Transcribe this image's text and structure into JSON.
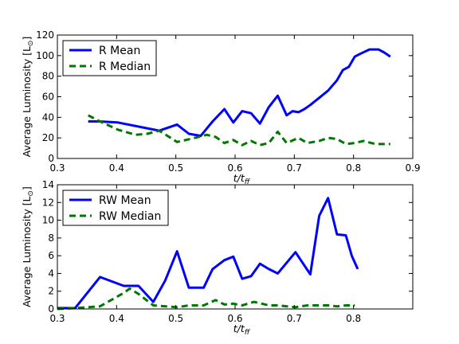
{
  "chart_data": [
    {
      "type": "line",
      "xlim": [
        0.3,
        0.9
      ],
      "ylim": [
        0,
        120
      ],
      "xticks": [
        "0.3",
        "0.4",
        "0.5",
        "0.6",
        "0.7",
        "0.8",
        "0.9"
      ],
      "yticks": [
        "0",
        "20",
        "40",
        "60",
        "80",
        "100",
        "120"
      ],
      "xlabel": "t/t_ff",
      "ylabel_main": "Average Luminosity [L",
      "ylabel_sub": "⊙",
      "ylabel_end": "]",
      "legend_position": "upper-left",
      "grid": false,
      "series": [
        {
          "name": "R Mean",
          "color": "#0000ff",
          "style": "solid",
          "x": [
            0.352,
            0.372,
            0.402,
            0.472,
            0.502,
            0.522,
            0.542,
            0.562,
            0.582,
            0.597,
            0.612,
            0.627,
            0.642,
            0.657,
            0.672,
            0.687,
            0.697,
            0.707,
            0.717,
            0.727,
            0.742,
            0.757,
            0.772,
            0.782,
            0.792,
            0.802,
            0.812,
            0.827,
            0.842,
            0.852,
            0.862
          ],
          "values": [
            36,
            36,
            35,
            27,
            33,
            24,
            22,
            36,
            48,
            35,
            46,
            44,
            34,
            50,
            61,
            42,
            46,
            45,
            48,
            52,
            59,
            66,
            76,
            86,
            89,
            99,
            102,
            106,
            106,
            103,
            99
          ]
        },
        {
          "name": "R Median",
          "color": "#007700",
          "style": "dashed",
          "x": [
            0.352,
            0.372,
            0.402,
            0.432,
            0.452,
            0.472,
            0.502,
            0.532,
            0.552,
            0.567,
            0.582,
            0.597,
            0.612,
            0.627,
            0.642,
            0.657,
            0.672,
            0.687,
            0.707,
            0.722,
            0.742,
            0.757,
            0.772,
            0.787,
            0.802,
            0.817,
            0.837,
            0.852,
            0.862
          ],
          "values": [
            42,
            36,
            28,
            23,
            24,
            27,
            16,
            20,
            23,
            21,
            15,
            18,
            13,
            17,
            13,
            15,
            26,
            15,
            20,
            15,
            17,
            20,
            19,
            14,
            15,
            17,
            14,
            14,
            14
          ]
        }
      ]
    },
    {
      "type": "line",
      "xlim": [
        0.3,
        0.9
      ],
      "ylim": [
        0,
        14
      ],
      "xticks": [
        "0.3",
        "0.4",
        "0.5",
        "0.6",
        "0.7",
        "0.8"
      ],
      "yticks": [
        "0",
        "2",
        "4",
        "6",
        "8",
        "10",
        "12",
        "14"
      ],
      "xlabel": "t/t_ff",
      "ylabel_main": "Average Luminosity [L",
      "ylabel_sub": "⊙",
      "ylabel_end": "]",
      "legend_position": "upper-left",
      "grid": false,
      "series": [
        {
          "name": "RW Mean",
          "color": "#0000ff",
          "style": "solid",
          "x": [
            0.3,
            0.33,
            0.372,
            0.412,
            0.437,
            0.462,
            0.482,
            0.502,
            0.522,
            0.547,
            0.562,
            0.582,
            0.597,
            0.612,
            0.627,
            0.642,
            0.657,
            0.672,
            0.702,
            0.727,
            0.742,
            0.757,
            0.772,
            0.787,
            0.797,
            0.807
          ],
          "values": [
            0.1,
            0.1,
            3.6,
            2.6,
            2.6,
            0.8,
            3.2,
            6.5,
            2.4,
            2.4,
            4.5,
            5.5,
            5.9,
            3.4,
            3.7,
            5.1,
            4.5,
            4.0,
            6.4,
            3.9,
            10.5,
            12.5,
            8.4,
            8.3,
            6.0,
            4.5
          ]
        },
        {
          "name": "RW Median",
          "color": "#007700",
          "style": "dashed",
          "x": [
            0.3,
            0.33,
            0.372,
            0.412,
            0.422,
            0.437,
            0.462,
            0.502,
            0.522,
            0.547,
            0.567,
            0.582,
            0.597,
            0.612,
            0.632,
            0.657,
            0.672,
            0.702,
            0.722,
            0.742,
            0.757,
            0.772,
            0.787,
            0.802
          ],
          "values": [
            0.0,
            0.1,
            0.3,
            1.8,
            2.3,
            1.7,
            0.4,
            0.2,
            0.4,
            0.4,
            1.0,
            0.5,
            0.6,
            0.4,
            0.8,
            0.4,
            0.4,
            0.2,
            0.4,
            0.4,
            0.4,
            0.3,
            0.4,
            0.4
          ]
        }
      ]
    }
  ]
}
